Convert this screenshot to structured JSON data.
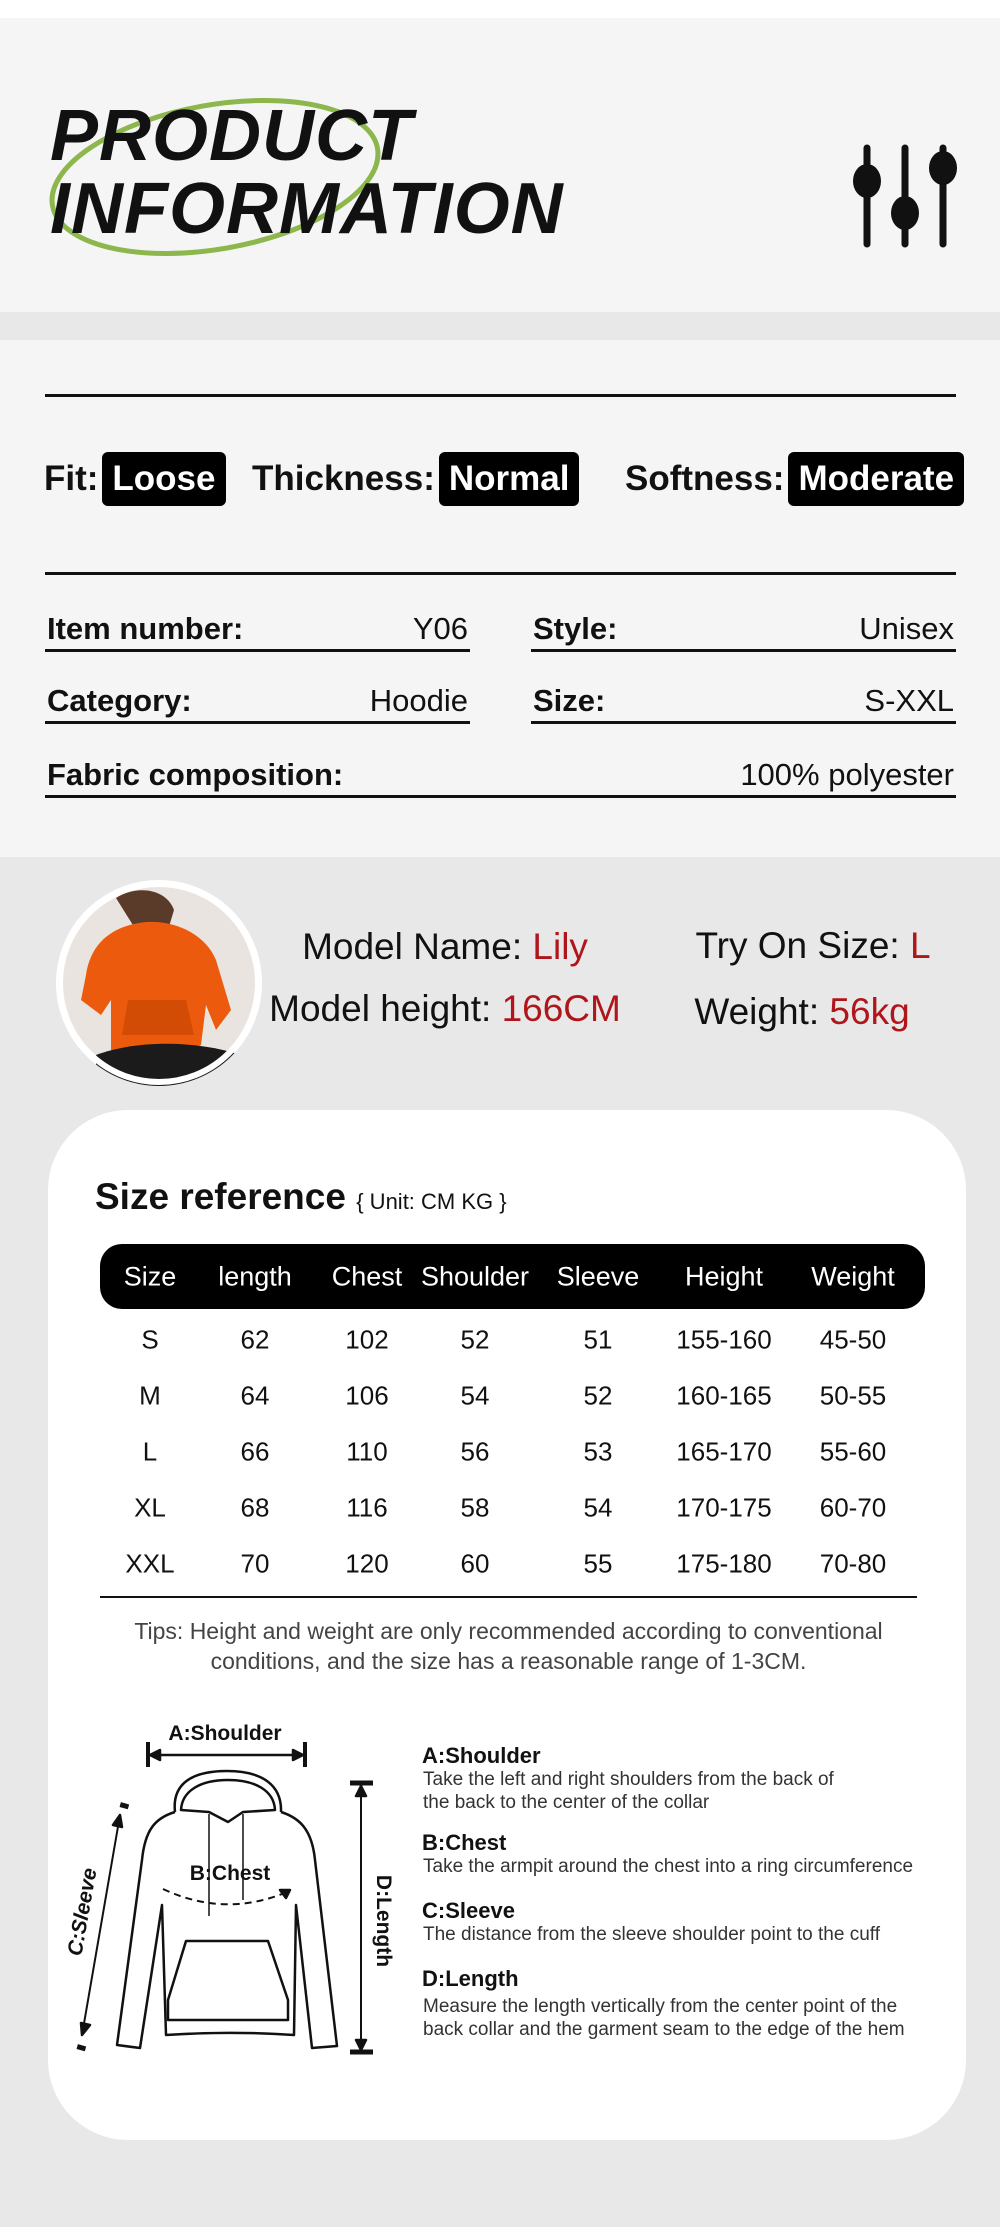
{
  "header": {
    "title_line1": "PRODUCT",
    "title_line2": "INFORMATION",
    "icon": "sliders-icon",
    "accent_color": "#8db64c"
  },
  "attributes": [
    {
      "label": "Fit:",
      "value": "Loose"
    },
    {
      "label": "Thickness:",
      "value": "Normal"
    },
    {
      "label": "Softness:",
      "value": "Moderate"
    }
  ],
  "details": {
    "item_number": {
      "label": "Item number:",
      "value": "Y06"
    },
    "style": {
      "label": "Style:",
      "value": "Unisex"
    },
    "category": {
      "label": "Category:",
      "value": "Hoodie"
    },
    "size": {
      "label": "Size:",
      "value": "S-XXL"
    },
    "fabric": {
      "label": "Fabric composition:",
      "value": "100% polyester"
    }
  },
  "model": {
    "name_label": "Model Name:",
    "name": "Lily",
    "height_label": "Model height:",
    "height": "166CM",
    "try_on_label": "Try On Size:",
    "try_on": "L",
    "weight_label": "Weight:",
    "weight": "56kg",
    "highlight_color": "#b0151c"
  },
  "size_reference": {
    "title": "Size reference",
    "unit": "{ Unit: CM KG }",
    "columns": [
      "Size",
      "length",
      "Chest",
      "Shoulder",
      "Sleeve",
      "Height",
      "Weight"
    ],
    "rows": [
      [
        "S",
        "62",
        "102",
        "52",
        "51",
        "155-160",
        "45-50"
      ],
      [
        "M",
        "64",
        "106",
        "54",
        "52",
        "160-165",
        "50-55"
      ],
      [
        "L",
        "66",
        "110",
        "56",
        "53",
        "165-170",
        "55-60"
      ],
      [
        "XL",
        "68",
        "116",
        "58",
        "54",
        "170-175",
        "60-70"
      ],
      [
        "XXL",
        "70",
        "120",
        "60",
        "55",
        "175-180",
        "70-80"
      ]
    ],
    "tips_line1": "Tips: Height and weight are only recommended according to conventional",
    "tips_line2": "conditions, and the size has a reasonable range of 1-3CM."
  },
  "measure": {
    "diagram_labels": {
      "shoulder": "A:Shoulder",
      "chest": "B:Chest",
      "sleeve": "C:Sleeve",
      "length": "D:Length"
    },
    "items": [
      {
        "title": "A:Shoulder",
        "lines": [
          "Take the left and right shoulders from the back of",
          "the back to the center of the collar"
        ]
      },
      {
        "title": "B:Chest",
        "lines": [
          "Take the armpit around the chest into a ring circumference"
        ]
      },
      {
        "title": "C:Sleeve",
        "lines": [
          "The distance from the sleeve shoulder point to the cuff"
        ]
      },
      {
        "title": "D:Length",
        "lines": [
          "Measure the length vertically from the center point of the",
          "back collar and the garment seam to the edge of the hem"
        ]
      }
    ]
  }
}
